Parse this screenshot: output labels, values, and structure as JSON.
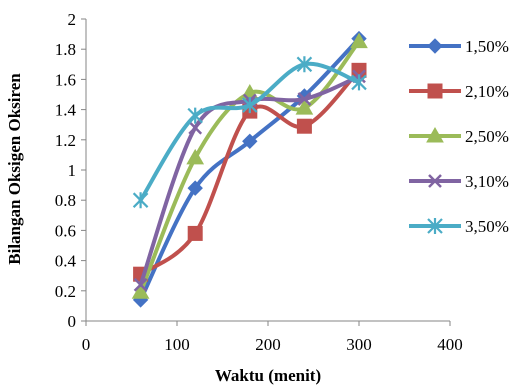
{
  "chart_data": {
    "type": "line",
    "xlabel": "Waktu (menit)",
    "ylabel": "Bilangan Oksigen Oksiren",
    "xlim": [
      0,
      400
    ],
    "ylim": [
      0,
      2
    ],
    "x_ticks": [
      "0",
      "100",
      "200",
      "300",
      "400"
    ],
    "y_ticks": [
      "0",
      "0.2",
      "0.4",
      "0.6",
      "0.8",
      "1",
      "1.2",
      "1.4",
      "1.6",
      "1.8",
      "2"
    ],
    "grid": false,
    "legend_position": "right",
    "smooth": true,
    "series": [
      {
        "name": "1,50%",
        "color": "#4472C4",
        "marker": "diamond",
        "x": [
          60,
          120,
          180,
          240,
          300
        ],
        "y": [
          0.14,
          0.88,
          1.19,
          1.49,
          1.87
        ]
      },
      {
        "name": "2,10%",
        "color": "#C0504D",
        "marker": "square",
        "x": [
          60,
          120,
          180,
          240,
          300
        ],
        "y": [
          0.31,
          0.58,
          1.39,
          1.29,
          1.66
        ]
      },
      {
        "name": "2,50%",
        "color": "#9BBB59",
        "marker": "triangle",
        "x": [
          60,
          120,
          180,
          240,
          300
        ],
        "y": [
          0.19,
          1.08,
          1.51,
          1.41,
          1.85
        ]
      },
      {
        "name": "3,10%",
        "color": "#8064A2",
        "marker": "x",
        "x": [
          60,
          120,
          180,
          240,
          300
        ],
        "y": [
          0.24,
          1.28,
          1.46,
          1.47,
          1.62
        ]
      },
      {
        "name": "3,50%",
        "color": "#4BACC6",
        "marker": "asterisk",
        "x": [
          60,
          120,
          180,
          240,
          300
        ],
        "y": [
          0.8,
          1.36,
          1.43,
          1.7,
          1.58
        ]
      }
    ]
  }
}
